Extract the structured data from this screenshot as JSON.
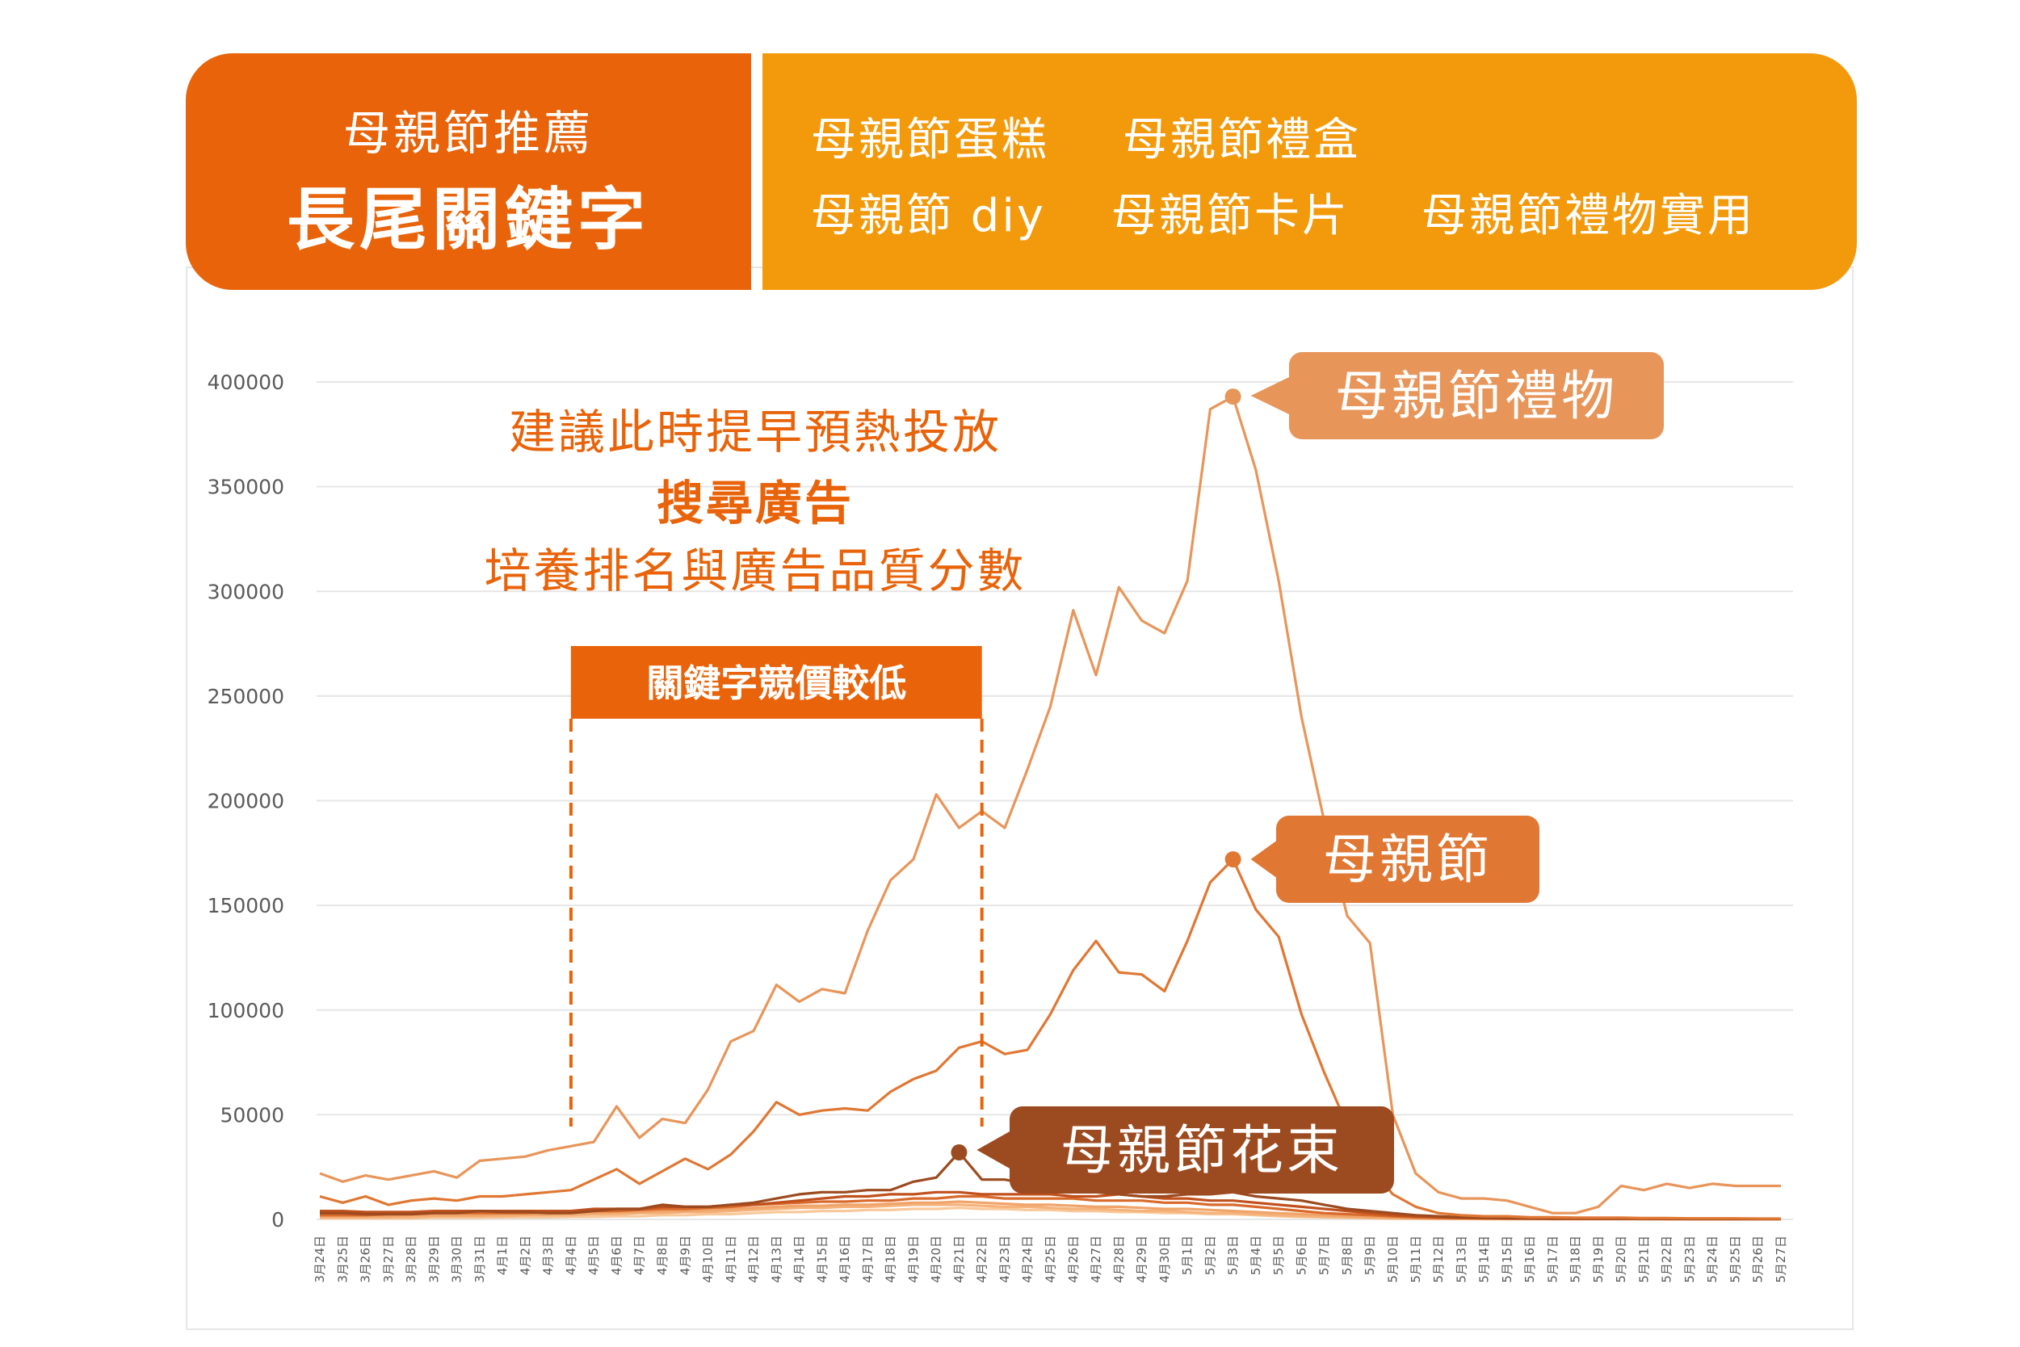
{
  "header": {
    "subtitle": "母親節推薦",
    "title": "長尾關鍵字",
    "keywords_row1": [
      "母親節蛋糕",
      "母親節禮盒"
    ],
    "keywords_row2": [
      "母親節 diy",
      "母親節卡片",
      "母親節禮物實用"
    ]
  },
  "annotation": {
    "line1": "建議此時提早預熱投放",
    "line2": "搜尋廣告",
    "line3": "培養排名與廣告品質分數"
  },
  "bracket": {
    "label": "關鍵字競價較低",
    "from": "4月4日",
    "to": "4月22日"
  },
  "callouts": [
    {
      "series": "母親節禮物",
      "at": "5月3日"
    },
    {
      "series": "母親節",
      "at": "5月3日"
    },
    {
      "series": "母親節花束",
      "at": "4月21日"
    }
  ],
  "colors": {
    "header_left": "#e8630a",
    "header_right": "#f29a0c",
    "accent": "#e8630a",
    "gift": "#e8955a",
    "mother": "#e07733",
    "flower": "#9c4a1f",
    "grid": "#e6e6e6",
    "axis_text": "#595959"
  },
  "chart_data": {
    "type": "line",
    "ylim": [
      0,
      400000
    ],
    "yticks": [
      0,
      50000,
      100000,
      150000,
      200000,
      250000,
      300000,
      350000,
      400000
    ],
    "grid": true,
    "x": [
      "3月24日",
      "3月25日",
      "3月26日",
      "3月27日",
      "3月28日",
      "3月29日",
      "3月30日",
      "3月31日",
      "4月1日",
      "4月2日",
      "4月3日",
      "4月4日",
      "4月5日",
      "4月6日",
      "4月7日",
      "4月8日",
      "4月9日",
      "4月10日",
      "4月11日",
      "4月12日",
      "4月13日",
      "4月14日",
      "4月15日",
      "4月16日",
      "4月17日",
      "4月18日",
      "4月19日",
      "4月20日",
      "4月21日",
      "4月22日",
      "4月23日",
      "4月24日",
      "4月25日",
      "4月26日",
      "4月27日",
      "4月28日",
      "4月29日",
      "4月30日",
      "5月1日",
      "5月2日",
      "5月3日",
      "5月4日",
      "5月5日",
      "5月6日",
      "5月7日",
      "5月8日",
      "5月9日",
      "5月10日",
      "5月11日",
      "5月12日",
      "5月13日",
      "5月14日",
      "5月15日",
      "5月16日",
      "5月17日",
      "5月18日",
      "5月19日",
      "5月20日",
      "5月21日",
      "5月22日",
      "5月23日",
      "5月24日",
      "5月25日",
      "5月26日",
      "5月27日"
    ],
    "series": [
      {
        "name": "母親節禮物",
        "color": "#e8955a",
        "values": [
          22000,
          18000,
          21000,
          19000,
          21000,
          23000,
          20000,
          28000,
          29000,
          30000,
          33000,
          35000,
          37000,
          54000,
          39000,
          48000,
          46000,
          62000,
          85000,
          90000,
          112000,
          104000,
          110000,
          108000,
          138000,
          162000,
          172000,
          203000,
          187000,
          195000,
          187000,
          215000,
          245000,
          291000,
          260000,
          302000,
          286000,
          280000,
          305000,
          387000,
          393000,
          358000,
          305000,
          240000,
          190000,
          145000,
          132000,
          50000,
          22000,
          13000,
          10000,
          10000,
          9000,
          6000,
          3000,
          3000,
          6000,
          16000,
          14000,
          17000,
          15000,
          17000,
          16000,
          16000,
          16000
        ]
      },
      {
        "name": "母親節",
        "color": "#e07733",
        "values": [
          11000,
          8000,
          11000,
          7000,
          9000,
          10000,
          9000,
          11000,
          11000,
          12000,
          13000,
          14000,
          19000,
          24000,
          17000,
          23000,
          29000,
          24000,
          31000,
          42000,
          56000,
          50000,
          52000,
          53000,
          52000,
          61000,
          67000,
          71000,
          82000,
          85000,
          79000,
          81000,
          98000,
          119000,
          133000,
          118000,
          117000,
          109000,
          133000,
          161000,
          172000,
          148000,
          135000,
          98000,
          70000,
          45000,
          25000,
          12000,
          6000,
          3000,
          2000,
          1500,
          1500,
          1000,
          1000,
          800,
          800,
          800,
          600,
          600,
          500,
          500,
          500,
          400,
          400
        ]
      },
      {
        "name": "母親節花束",
        "color": "#9c4a1f",
        "values": [
          3000,
          3000,
          2500,
          2500,
          2500,
          3000,
          3000,
          4000,
          3500,
          3500,
          3000,
          3000,
          4000,
          5000,
          5000,
          7000,
          6000,
          6000,
          7000,
          8000,
          10000,
          12000,
          13000,
          13000,
          14000,
          14000,
          18000,
          20000,
          32000,
          19000,
          19000,
          17000,
          15000,
          13000,
          13000,
          12000,
          11000,
          11000,
          12000,
          12000,
          13000,
          11000,
          10000,
          9000,
          7000,
          5000,
          4000,
          3000,
          2000,
          1500,
          1000,
          800,
          600,
          500,
          400,
          400,
          300,
          300,
          300,
          300,
          200,
          200,
          200,
          200,
          200
        ]
      },
      {
        "name": "母親節蛋糕",
        "color": "#c0501c",
        "values": [
          4000,
          4000,
          3500,
          3500,
          3500,
          4000,
          4000,
          4000,
          4000,
          4000,
          4000,
          4000,
          5000,
          5000,
          5000,
          6000,
          6000,
          6000,
          7000,
          7000,
          8000,
          9000,
          10000,
          11000,
          11000,
          12000,
          12000,
          13000,
          13000,
          12000,
          12000,
          12000,
          12000,
          11000,
          11000,
          12000,
          11000,
          10000,
          10000,
          9000,
          9000,
          8000,
          7000,
          6000,
          5000,
          4000,
          3000,
          2000,
          1500,
          1000,
          800,
          600,
          500,
          400,
          400,
          300,
          300,
          300,
          300,
          200,
          200,
          200,
          200,
          200,
          200
        ]
      },
      {
        "name": "母親節禮盒",
        "color": "#d9692a",
        "values": [
          2000,
          2000,
          2000,
          2500,
          2500,
          3000,
          3000,
          3000,
          3000,
          3000,
          3500,
          3500,
          4000,
          4000,
          4500,
          5000,
          5000,
          5500,
          6000,
          7000,
          7500,
          8000,
          8500,
          8500,
          9000,
          9000,
          10000,
          10000,
          11000,
          11000,
          10000,
          10000,
          10000,
          10000,
          9000,
          9000,
          9000,
          8000,
          8000,
          7000,
          7000,
          6000,
          5000,
          4000,
          3000,
          2500,
          2000,
          1500,
          1000,
          800,
          600,
          500,
          400,
          400,
          300,
          300,
          300,
          300,
          200,
          200,
          200,
          200,
          200,
          200,
          200
        ]
      },
      {
        "name": "母親節 diy",
        "color": "#f0a46a",
        "values": [
          1500,
          1500,
          1500,
          1500,
          2000,
          2000,
          2000,
          2000,
          2500,
          2500,
          2500,
          3000,
          3000,
          3500,
          3500,
          4000,
          4000,
          4500,
          5000,
          5500,
          6000,
          6500,
          6500,
          7000,
          7000,
          7500,
          8000,
          8000,
          8500,
          8000,
          7500,
          7000,
          7000,
          6500,
          6000,
          6000,
          5500,
          5000,
          5000,
          4500,
          4000,
          3500,
          3000,
          2500,
          2000,
          1500,
          1000,
          800,
          600,
          500,
          400,
          300,
          300,
          300,
          200,
          200,
          200,
          200,
          200,
          200,
          200,
          200,
          200,
          200,
          200
        ]
      },
      {
        "name": "母親節卡片",
        "color": "#f5b27a",
        "values": [
          1000,
          1000,
          1000,
          1000,
          1000,
          1500,
          1500,
          1500,
          1500,
          2000,
          2000,
          2000,
          2500,
          2500,
          3000,
          3000,
          3500,
          3500,
          4000,
          4500,
          5000,
          5500,
          5500,
          6000,
          6000,
          6500,
          7000,
          7000,
          7000,
          6500,
          6000,
          6000,
          5500,
          5000,
          5000,
          4500,
          4000,
          4000,
          3500,
          3000,
          3000,
          2500,
          2000,
          1500,
          1200,
          1000,
          800,
          600,
          400,
          300,
          300,
          200,
          200,
          200,
          200,
          200,
          200,
          200,
          200,
          200,
          200,
          200,
          200,
          200,
          200
        ]
      },
      {
        "name": "母親節禮物實用",
        "color": "#f8c89a",
        "values": [
          500,
          500,
          500,
          500,
          500,
          800,
          800,
          800,
          1000,
          1000,
          1000,
          1200,
          1200,
          1500,
          1500,
          2000,
          2000,
          2500,
          2500,
          3000,
          3500,
          3500,
          4000,
          4000,
          4500,
          4500,
          5000,
          5000,
          5500,
          5000,
          5000,
          4500,
          4500,
          4000,
          4000,
          3500,
          3500,
          3000,
          3000,
          2500,
          2500,
          2000,
          1500,
          1200,
          1000,
          800,
          600,
          400,
          300,
          200,
          200,
          200,
          200,
          200,
          200,
          200,
          200,
          200,
          200,
          200,
          200,
          200,
          200,
          200,
          200
        ]
      }
    ]
  }
}
